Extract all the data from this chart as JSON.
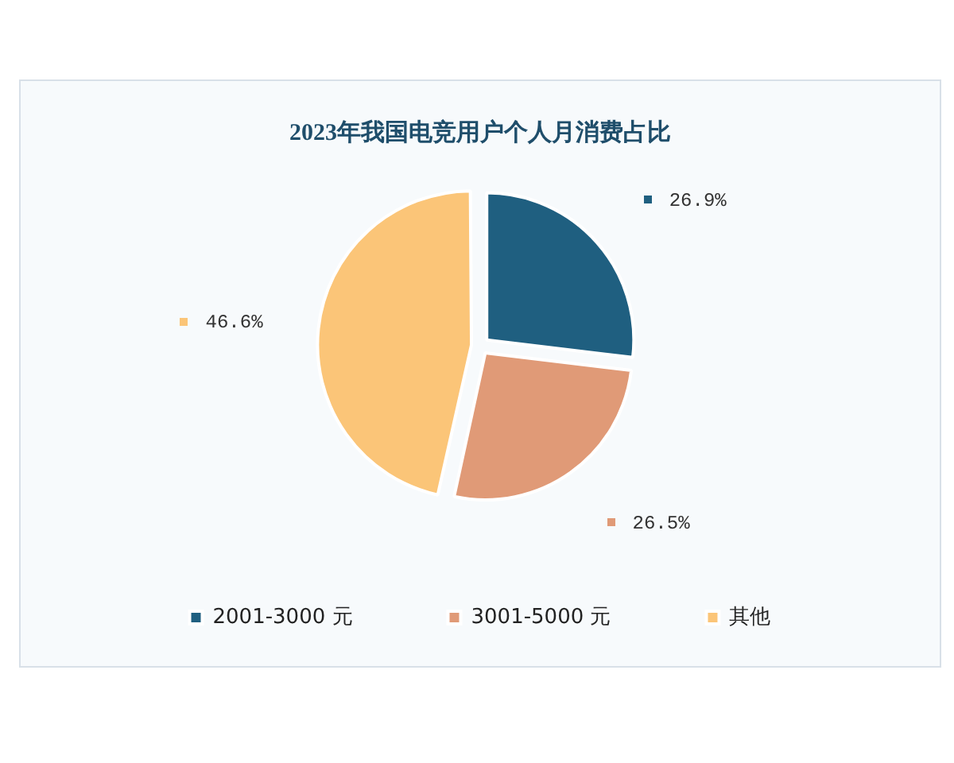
{
  "chart_data": {
    "type": "pie",
    "title": "2023年我国电竞用户个人月消费占比",
    "categories": [
      "2001-3000 元",
      "3001-5000 元",
      "其他"
    ],
    "values": [
      26.9,
      26.5,
      46.6
    ],
    "colors": [
      "#1f5f80",
      "#e09a77",
      "#fbc578"
    ],
    "value_labels": [
      "26.9%",
      "26.5%",
      "46.6%"
    ],
    "legend": "bottom"
  }
}
